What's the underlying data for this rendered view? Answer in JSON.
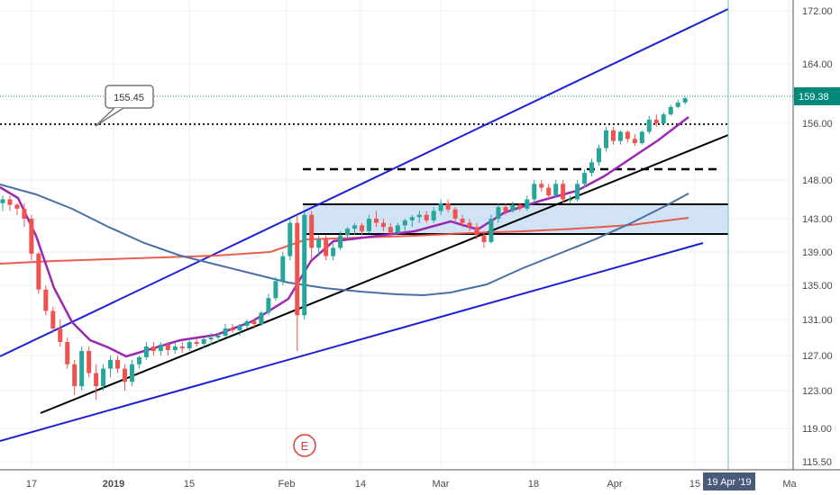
{
  "chart_data": {
    "type": "candlestick",
    "price_axis": {
      "ticks": [
        "172.00",
        "164.00",
        "156.00",
        "148.00",
        "143.00",
        "139.00",
        "135.00",
        "131.00",
        "127.00",
        "123.00",
        "119.00",
        "115.50"
      ],
      "range": [
        115.5,
        174
      ]
    },
    "time_axis": {
      "tick_labels": [
        "17",
        "2019",
        "15",
        "Feb",
        "14",
        "Mar",
        "18",
        "Apr",
        "15",
        "Ma"
      ]
    },
    "last_price": {
      "label": "159.38",
      "value": 159.38,
      "color": "#00897b"
    },
    "callout": {
      "label": "155.45",
      "value": 155.45
    },
    "crosshair_date_label": "19 Apr '19",
    "event_marker": {
      "label": "E",
      "color": "#e53935"
    },
    "colors": {
      "up": "#26a69a",
      "down": "#ef5350",
      "channel": "#1f1fd6",
      "trendline": "#000000",
      "ma_short": "#9c27b0",
      "ma_mid": "#4a6fa5",
      "ma_long": "#e74c3c",
      "zone_fill": "#c9def2"
    },
    "candles": [
      [
        0,
        145,
        146,
        144,
        145.5
      ],
      [
        1,
        145.5,
        146,
        144,
        144.8
      ],
      [
        2,
        144.8,
        145,
        143.5,
        144.3
      ],
      [
        3,
        144.3,
        145,
        142,
        143
      ],
      [
        4,
        143,
        143.5,
        138,
        138.8
      ],
      [
        5,
        138.8,
        139,
        134,
        134.5
      ],
      [
        6,
        134.5,
        135,
        131.5,
        132
      ],
      [
        7,
        132,
        132.5,
        129.5,
        130
      ],
      [
        8,
        130,
        131,
        128,
        128.5
      ],
      [
        9,
        128.5,
        129,
        125.5,
        126
      ],
      [
        10,
        126,
        126.5,
        122.5,
        123.5
      ],
      [
        11,
        123.5,
        128,
        123,
        127.5
      ],
      [
        12,
        127.5,
        128,
        124.5,
        125
      ],
      [
        13,
        125,
        126,
        122,
        123.5
      ],
      [
        14,
        123.5,
        126,
        123,
        125.5
      ],
      [
        15,
        125.5,
        127,
        124.5,
        126.5
      ],
      [
        16,
        126.5,
        127,
        125,
        125.5
      ],
      [
        17,
        125.5,
        126,
        123,
        124
      ],
      [
        18,
        124,
        126.5,
        123.5,
        126
      ],
      [
        19,
        126,
        127,
        125.5,
        126.8
      ],
      [
        20,
        126.8,
        128.5,
        126.5,
        128
      ],
      [
        21,
        128,
        128.5,
        127,
        127.5
      ],
      [
        22,
        127.5,
        128.5,
        127,
        128.2
      ],
      [
        23,
        128.2,
        128.5,
        127,
        127.6
      ],
      [
        24,
        127.6,
        128.5,
        127.2,
        128
      ],
      [
        25,
        128,
        128.5,
        127.3,
        127.8
      ],
      [
        26,
        127.8,
        128.8,
        127.5,
        128.5
      ],
      [
        27,
        128.5,
        129,
        128,
        128.3
      ],
      [
        28,
        128.3,
        129,
        127.8,
        128.8
      ],
      [
        29,
        128.8,
        129.5,
        128.2,
        129
      ],
      [
        30,
        129,
        129.5,
        128.5,
        129.2
      ],
      [
        31,
        129.2,
        130.5,
        129,
        130
      ],
      [
        32,
        130,
        130.5,
        129.5,
        129.8
      ],
      [
        33,
        129.8,
        130.5,
        129.2,
        130.3
      ],
      [
        34,
        130.3,
        131,
        130,
        130.8
      ],
      [
        35,
        130.8,
        131,
        130,
        130.5
      ],
      [
        36,
        130.5,
        132,
        130.3,
        131.8
      ],
      [
        37,
        131.8,
        134,
        131.5,
        133.5
      ],
      [
        38,
        133.5,
        136,
        133.2,
        135.5
      ],
      [
        39,
        135.5,
        139,
        135,
        138.5
      ],
      [
        40,
        138.5,
        143,
        138,
        142.5
      ],
      [
        41,
        142.5,
        143.5,
        127.5,
        131.5
      ],
      [
        42,
        131.5,
        143.8,
        131,
        143.5
      ],
      [
        43,
        143.5,
        144,
        138,
        139.5
      ],
      [
        44,
        139.5,
        141,
        138.5,
        140.5
      ],
      [
        45,
        140.5,
        141,
        138,
        138.5
      ],
      [
        46,
        138.5,
        140,
        138,
        139.5
      ],
      [
        47,
        139.5,
        141.5,
        139.2,
        141
      ],
      [
        48,
        141,
        142,
        140.5,
        141.8
      ],
      [
        49,
        141.8,
        142.5,
        141,
        142.2
      ],
      [
        50,
        142.2,
        142.5,
        141,
        141.5
      ],
      [
        51,
        141.5,
        143.5,
        141.3,
        143
      ],
      [
        52,
        143,
        144,
        142,
        142.5
      ],
      [
        53,
        142.5,
        143,
        141.5,
        142
      ],
      [
        54,
        142,
        142.5,
        140.8,
        141.3
      ],
      [
        55,
        141.3,
        142.5,
        141,
        142.2
      ],
      [
        56,
        142.2,
        143,
        141.5,
        142.8
      ],
      [
        57,
        142.8,
        143.5,
        142,
        143.2
      ],
      [
        58,
        143.2,
        144,
        142.5,
        143.5
      ],
      [
        59,
        143.5,
        144,
        142.5,
        142.8
      ],
      [
        60,
        142.8,
        144.5,
        142.5,
        144
      ],
      [
        61,
        144,
        145.5,
        143.5,
        145
      ],
      [
        62,
        145,
        145.5,
        143.8,
        144.2
      ],
      [
        63,
        144.2,
        144.5,
        142.5,
        143
      ],
      [
        64,
        143,
        143.5,
        142,
        142.5
      ],
      [
        65,
        142.5,
        143,
        141.5,
        142
      ],
      [
        66,
        142,
        142.5,
        140.5,
        141
      ],
      [
        67,
        141,
        141.5,
        139.5,
        140.2
      ],
      [
        68,
        140.2,
        143.5,
        140,
        143
      ],
      [
        69,
        143,
        145,
        142.5,
        144.5
      ],
      [
        70,
        144.5,
        145,
        143.5,
        144
      ],
      [
        71,
        144,
        145.2,
        143.8,
        144.8
      ],
      [
        72,
        144.8,
        145,
        144,
        144.3
      ],
      [
        73,
        144.3,
        146,
        144,
        145.5
      ],
      [
        74,
        145.5,
        148,
        145,
        147.5
      ],
      [
        75,
        147.5,
        148,
        146.5,
        147
      ],
      [
        76,
        147,
        147.5,
        145.5,
        146
      ],
      [
        77,
        146,
        148,
        145.8,
        147.5
      ],
      [
        78,
        147.5,
        148,
        145,
        145.5
      ],
      [
        79,
        145.5,
        146,
        145,
        145.5
      ],
      [
        80,
        145.5,
        148,
        145.2,
        147.5
      ],
      [
        81,
        147.5,
        149.5,
        147,
        149
      ],
      [
        82,
        149,
        151,
        148.5,
        150.5
      ],
      [
        83,
        150.5,
        153,
        150,
        152.5
      ],
      [
        84,
        152.5,
        155.5,
        152,
        155
      ],
      [
        85,
        155,
        155.5,
        153,
        153.5
      ],
      [
        86,
        153.5,
        155,
        153,
        154.8
      ],
      [
        87,
        154.8,
        155,
        153.3,
        153.8
      ],
      [
        88,
        153.8,
        154.5,
        152.8,
        153.2
      ],
      [
        89,
        153.2,
        155,
        153,
        154.8
      ],
      [
        90,
        154.8,
        157,
        154.5,
        156.5
      ],
      [
        91,
        156.5,
        157.2,
        155.5,
        156
      ],
      [
        92,
        156,
        157.5,
        155.8,
        157.2
      ],
      [
        93,
        157.2,
        158.5,
        157,
        158.2
      ],
      [
        94,
        158.2,
        159.2,
        158,
        158.8
      ],
      [
        95,
        158.8,
        159.6,
        158.5,
        159.38
      ]
    ]
  }
}
